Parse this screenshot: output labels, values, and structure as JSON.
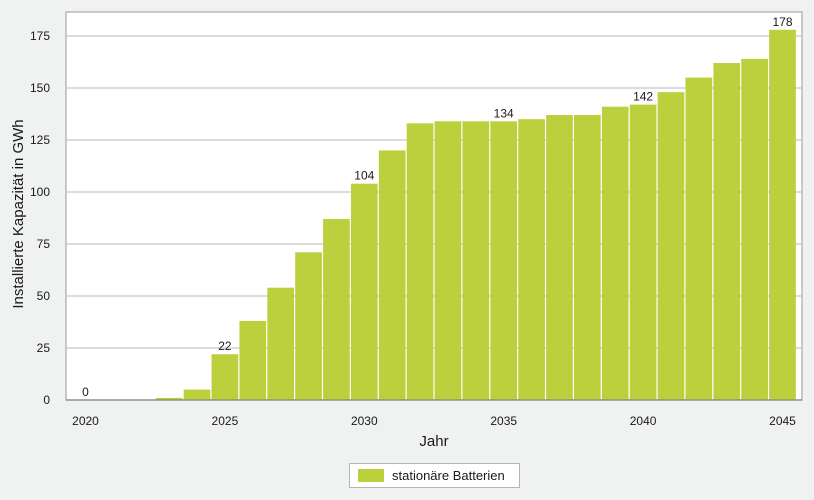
{
  "colors": {
    "bar": "#bccf3c",
    "background": "#f0f1f1",
    "plot_background": "#ffffff",
    "grid": "#c6c6c6",
    "frame": "#b8b8b8"
  },
  "chart_data": {
    "type": "bar",
    "title": "",
    "xlabel": "Jahr",
    "ylabel": "Installierte Kapazität in GWh",
    "ylim": [
      0,
      185
    ],
    "yticks": [
      0,
      25,
      50,
      75,
      100,
      125,
      150,
      175
    ],
    "xticks": [
      2020,
      2025,
      2030,
      2035,
      2040,
      2045
    ],
    "grid": "horizontal",
    "legend_position": "bottom-center",
    "categories": [
      2020,
      2021,
      2022,
      2023,
      2024,
      2025,
      2026,
      2027,
      2028,
      2029,
      2030,
      2031,
      2032,
      2033,
      2034,
      2035,
      2036,
      2037,
      2038,
      2039,
      2040,
      2041,
      2042,
      2043,
      2044,
      2045
    ],
    "series": [
      {
        "name": "stationäre Batterien",
        "values": [
          0,
          0,
          0,
          1,
          5,
          22,
          38,
          54,
          71,
          87,
          104,
          120,
          133,
          134,
          134,
          134,
          135,
          137,
          137,
          141,
          142,
          148,
          155,
          162,
          164,
          178
        ]
      }
    ],
    "data_labels": [
      {
        "category": 2020,
        "text": "0"
      },
      {
        "category": 2025,
        "text": "22"
      },
      {
        "category": 2030,
        "text": "104"
      },
      {
        "category": 2035,
        "text": "134"
      },
      {
        "category": 2040,
        "text": "142"
      },
      {
        "category": 2045,
        "text": "178"
      }
    ]
  }
}
